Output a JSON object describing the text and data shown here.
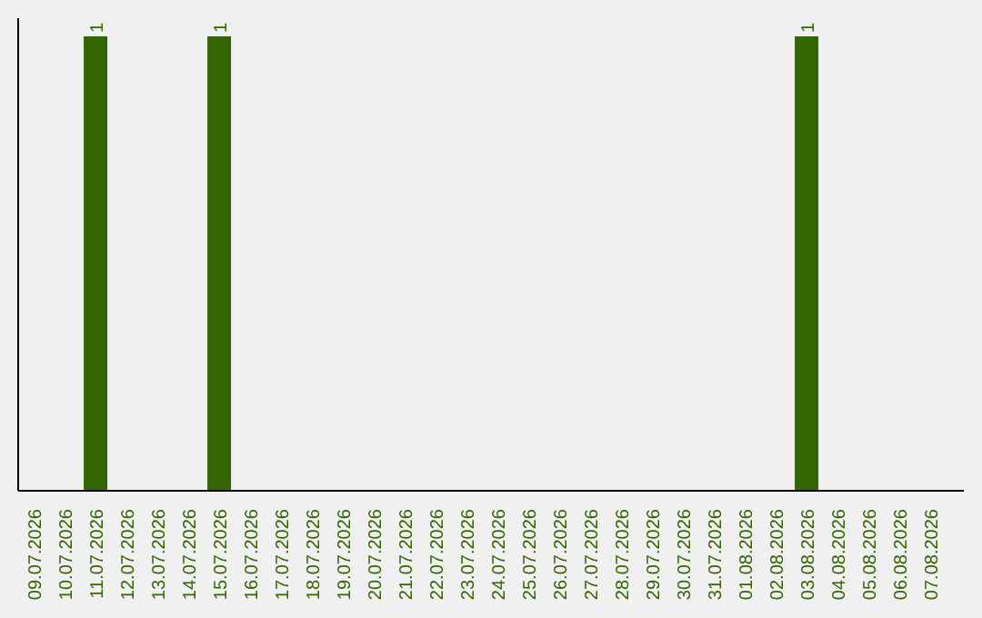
{
  "chart_data": {
    "type": "bar",
    "categories": [
      "09.07.2026",
      "10.07.2026",
      "11.07.2026",
      "12.07.2026",
      "13.07.2026",
      "14.07.2026",
      "15.07.2026",
      "16.07.2026",
      "17.07.2026",
      "18.07.2026",
      "19.07.2026",
      "20.07.2026",
      "21.07.2026",
      "22.07.2026",
      "23.07.2026",
      "24.07.2026",
      "25.07.2026",
      "26.07.2026",
      "27.07.2026",
      "28.07.2026",
      "29.07.2026",
      "30.07.2026",
      "31.07.2026",
      "01.08.2026",
      "02.08.2026",
      "03.08.2026",
      "04.08.2026",
      "05.08.2026",
      "06.08.2026",
      "07.08.2026"
    ],
    "values": [
      0,
      0,
      1,
      0,
      0,
      0,
      1,
      0,
      0,
      0,
      0,
      0,
      0,
      0,
      0,
      0,
      0,
      0,
      0,
      0,
      0,
      0,
      0,
      0,
      0,
      1,
      0,
      0,
      0,
      0
    ],
    "value_labels": [
      null,
      null,
      "1",
      null,
      null,
      null,
      "1",
      null,
      null,
      null,
      null,
      null,
      null,
      null,
      null,
      null,
      null,
      null,
      null,
      null,
      null,
      null,
      null,
      null,
      null,
      "1",
      null,
      null,
      null,
      null
    ],
    "color": "#336600",
    "grid": false,
    "legend": false,
    "tick_labels": "x"
  }
}
